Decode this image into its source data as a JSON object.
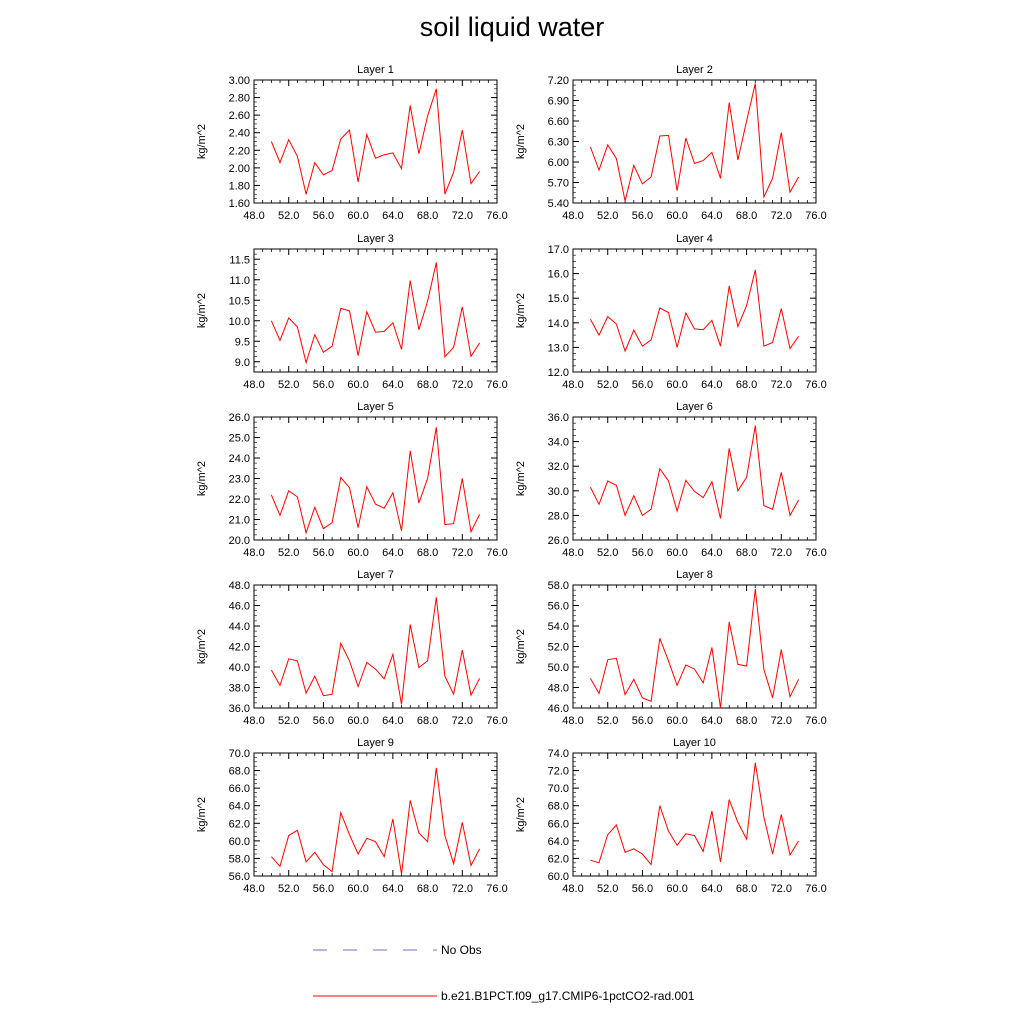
{
  "figure": {
    "title": "soil liquid water",
    "legend": [
      {
        "label": "No Obs",
        "color": "#6c6cd8",
        "style": "dashed"
      },
      {
        "label": "b.e21.B1PCT.f09_g17.CMIP6-1pctCO2-rad.001",
        "color": "#ff0000",
        "style": "solid"
      }
    ]
  },
  "chart_data": [
    {
      "type": "line",
      "title": "Layer 1",
      "ylabel": "kg/m^2",
      "xlim": [
        48,
        76
      ],
      "ylim": [
        1.6,
        3.0
      ],
      "xticks": [
        "48.0",
        "52.0",
        "56.0",
        "60.0",
        "64.0",
        "68.0",
        "72.0",
        "76.0"
      ],
      "yticks": [
        "1.60",
        "1.80",
        "2.00",
        "2.20",
        "2.40",
        "2.60",
        "2.80",
        "3.00"
      ],
      "x": [
        50,
        51,
        52,
        53,
        54,
        55,
        56,
        57,
        58,
        59,
        60,
        61,
        62,
        63,
        64,
        65,
        66,
        67,
        68,
        69,
        70,
        71,
        72,
        73,
        74
      ],
      "series": [
        {
          "name": "b.e21.B1PCT.f09_g17.CMIP6-1pctCO2-rad.001",
          "color": "#ff0000",
          "values": [
            2.3,
            2.06,
            2.32,
            2.13,
            1.7,
            2.06,
            1.92,
            1.97,
            2.33,
            2.43,
            1.84,
            2.38,
            2.11,
            2.15,
            2.17,
            1.99,
            2.71,
            2.16,
            2.59,
            2.9,
            1.7,
            1.95,
            2.43,
            1.82,
            1.96
          ]
        }
      ]
    },
    {
      "type": "line",
      "title": "Layer 2",
      "ylabel": "kg/m^2",
      "xlim": [
        48,
        76
      ],
      "ylim": [
        5.4,
        7.2
      ],
      "xticks": [
        "48.0",
        "52.0",
        "56.0",
        "60.0",
        "64.0",
        "68.0",
        "72.0",
        "76.0"
      ],
      "yticks": [
        "5.40",
        "5.70",
        "6.00",
        "6.30",
        "6.60",
        "6.90",
        "7.20"
      ],
      "x": [
        50,
        51,
        52,
        53,
        54,
        55,
        56,
        57,
        58,
        59,
        60,
        61,
        62,
        63,
        64,
        65,
        66,
        67,
        68,
        69,
        70,
        71,
        72,
        73,
        74
      ],
      "series": [
        {
          "name": "b.e21.B1PCT.f09_g17.CMIP6-1pctCO2-rad.001",
          "color": "#ff0000",
          "values": [
            6.22,
            5.88,
            6.25,
            6.05,
            5.43,
            5.95,
            5.68,
            5.78,
            6.38,
            6.39,
            5.58,
            6.35,
            5.98,
            6.02,
            6.14,
            5.76,
            6.87,
            6.03,
            6.6,
            7.15,
            5.49,
            5.76,
            6.43,
            5.56,
            5.78
          ]
        }
      ]
    },
    {
      "type": "line",
      "title": "Layer 3",
      "ylabel": "kg/m^2",
      "xlim": [
        48,
        76
      ],
      "ylim": [
        8.75,
        11.75
      ],
      "xticks": [
        "48.0",
        "52.0",
        "56.0",
        "60.0",
        "64.0",
        "68.0",
        "72.0",
        "76.0"
      ],
      "yticks": [
        "9.0",
        "9.5",
        "10.0",
        "10.5",
        "11.0",
        "11.5"
      ],
      "x": [
        50,
        51,
        52,
        53,
        54,
        55,
        56,
        57,
        58,
        59,
        60,
        61,
        62,
        63,
        64,
        65,
        66,
        67,
        68,
        69,
        70,
        71,
        72,
        73,
        74
      ],
      "series": [
        {
          "name": "b.e21.B1PCT.f09_g17.CMIP6-1pctCO2-rad.001",
          "color": "#ff0000",
          "values": [
            10.0,
            9.52,
            10.07,
            9.85,
            8.98,
            9.66,
            9.23,
            9.38,
            10.3,
            10.24,
            9.15,
            10.22,
            9.72,
            9.74,
            9.95,
            9.3,
            10.98,
            9.78,
            10.48,
            11.42,
            9.12,
            9.35,
            10.34,
            9.13,
            9.46
          ]
        }
      ]
    },
    {
      "type": "line",
      "title": "Layer 4",
      "ylabel": "kg/m^2",
      "xlim": [
        48,
        76
      ],
      "ylim": [
        12.0,
        17.0
      ],
      "xticks": [
        "48.0",
        "52.0",
        "56.0",
        "60.0",
        "64.0",
        "68.0",
        "72.0",
        "76.0"
      ],
      "yticks": [
        "12.0",
        "13.0",
        "14.0",
        "15.0",
        "16.0",
        "17.0"
      ],
      "x": [
        50,
        51,
        52,
        53,
        54,
        55,
        56,
        57,
        58,
        59,
        60,
        61,
        62,
        63,
        64,
        65,
        66,
        67,
        68,
        69,
        70,
        71,
        72,
        73,
        74
      ],
      "series": [
        {
          "name": "b.e21.B1PCT.f09_g17.CMIP6-1pctCO2-rad.001",
          "color": "#ff0000",
          "values": [
            14.15,
            13.5,
            14.25,
            13.95,
            12.85,
            13.7,
            13.05,
            13.3,
            14.6,
            14.42,
            13.0,
            14.4,
            13.75,
            13.72,
            14.1,
            13.05,
            15.5,
            13.85,
            14.7,
            16.15,
            13.05,
            13.2,
            14.58,
            12.95,
            13.45
          ]
        }
      ]
    },
    {
      "type": "line",
      "title": "Layer 5",
      "ylabel": "kg/m^2",
      "xlim": [
        48,
        76
      ],
      "ylim": [
        20.0,
        26.0
      ],
      "xticks": [
        "48.0",
        "52.0",
        "56.0",
        "60.0",
        "64.0",
        "68.0",
        "72.0",
        "76.0"
      ],
      "yticks": [
        "20.0",
        "21.0",
        "22.0",
        "23.0",
        "24.0",
        "25.0",
        "26.0"
      ],
      "x": [
        50,
        51,
        52,
        53,
        54,
        55,
        56,
        57,
        58,
        59,
        60,
        61,
        62,
        63,
        64,
        65,
        66,
        67,
        68,
        69,
        70,
        71,
        72,
        73,
        74
      ],
      "series": [
        {
          "name": "b.e21.B1PCT.f09_g17.CMIP6-1pctCO2-rad.001",
          "color": "#ff0000",
          "values": [
            22.2,
            21.2,
            22.4,
            22.1,
            20.35,
            21.6,
            20.55,
            20.85,
            23.05,
            22.55,
            20.6,
            22.6,
            21.75,
            21.55,
            22.3,
            20.45,
            24.35,
            21.8,
            23.0,
            25.5,
            20.75,
            20.8,
            23.0,
            20.4,
            21.25
          ]
        }
      ]
    },
    {
      "type": "line",
      "title": "Layer 6",
      "ylabel": "kg/m^2",
      "xlim": [
        48,
        76
      ],
      "ylim": [
        26.0,
        36.0
      ],
      "xticks": [
        "48.0",
        "52.0",
        "56.0",
        "60.0",
        "64.0",
        "68.0",
        "72.0",
        "76.0"
      ],
      "yticks": [
        "26.0",
        "28.0",
        "30.0",
        "32.0",
        "34.0",
        "36.0"
      ],
      "x": [
        50,
        51,
        52,
        53,
        54,
        55,
        56,
        57,
        58,
        59,
        60,
        61,
        62,
        63,
        64,
        65,
        66,
        67,
        68,
        69,
        70,
        71,
        72,
        73,
        74
      ],
      "series": [
        {
          "name": "b.e21.B1PCT.f09_g17.CMIP6-1pctCO2-rad.001",
          "color": "#ff0000",
          "values": [
            30.3,
            28.9,
            30.8,
            30.45,
            28.0,
            29.6,
            28.0,
            28.5,
            31.8,
            30.8,
            28.35,
            30.85,
            29.95,
            29.45,
            30.75,
            27.75,
            33.45,
            30.0,
            31.1,
            35.3,
            28.8,
            28.5,
            31.5,
            28.0,
            29.25
          ]
        }
      ]
    },
    {
      "type": "line",
      "title": "Layer 7",
      "ylabel": "kg/m^2",
      "xlim": [
        48,
        76
      ],
      "ylim": [
        36.0,
        48.0
      ],
      "xticks": [
        "48.0",
        "52.0",
        "56.0",
        "60.0",
        "64.0",
        "68.0",
        "72.0",
        "76.0"
      ],
      "yticks": [
        "36.0",
        "38.0",
        "40.0",
        "42.0",
        "44.0",
        "46.0",
        "48.0"
      ],
      "x": [
        50,
        51,
        52,
        53,
        54,
        55,
        56,
        57,
        58,
        59,
        60,
        61,
        62,
        63,
        64,
        65,
        66,
        67,
        68,
        69,
        70,
        71,
        72,
        73,
        74
      ],
      "series": [
        {
          "name": "b.e21.B1PCT.f09_g17.CMIP6-1pctCO2-rad.001",
          "color": "#ff0000",
          "values": [
            39.7,
            38.2,
            40.8,
            40.6,
            37.45,
            39.1,
            37.2,
            37.35,
            42.3,
            40.6,
            38.1,
            40.45,
            39.8,
            38.85,
            41.25,
            36.35,
            44.15,
            39.95,
            40.6,
            46.8,
            39.1,
            37.35,
            41.65,
            37.25,
            38.9
          ]
        }
      ]
    },
    {
      "type": "line",
      "title": "Layer 8",
      "ylabel": "kg/m^2",
      "xlim": [
        48,
        76
      ],
      "ylim": [
        46.0,
        58.0
      ],
      "xticks": [
        "48.0",
        "52.0",
        "56.0",
        "60.0",
        "64.0",
        "68.0",
        "72.0",
        "76.0"
      ],
      "yticks": [
        "46.0",
        "48.0",
        "50.0",
        "52.0",
        "54.0",
        "56.0",
        "58.0"
      ],
      "x": [
        50,
        51,
        52,
        53,
        54,
        55,
        56,
        57,
        58,
        59,
        60,
        61,
        62,
        63,
        64,
        65,
        66,
        67,
        68,
        69,
        70,
        71,
        72,
        73,
        74
      ],
      "series": [
        {
          "name": "b.e21.B1PCT.f09_g17.CMIP6-1pctCO2-rad.001",
          "color": "#ff0000",
          "values": [
            48.9,
            47.4,
            50.7,
            50.85,
            47.3,
            48.8,
            47.0,
            46.65,
            52.8,
            50.6,
            48.2,
            50.2,
            49.8,
            48.45,
            51.9,
            46.0,
            54.4,
            50.25,
            50.1,
            57.6,
            49.75,
            47.0,
            51.7,
            47.1,
            48.8
          ]
        }
      ]
    },
    {
      "type": "line",
      "title": "Layer 9",
      "ylabel": "kg/m^2",
      "xlim": [
        48,
        76
      ],
      "ylim": [
        56.0,
        70.0
      ],
      "xticks": [
        "48.0",
        "52.0",
        "56.0",
        "60.0",
        "64.0",
        "68.0",
        "72.0",
        "76.0"
      ],
      "yticks": [
        "56.0",
        "58.0",
        "60.0",
        "62.0",
        "64.0",
        "66.0",
        "68.0",
        "70.0"
      ],
      "x": [
        50,
        51,
        52,
        53,
        54,
        55,
        56,
        57,
        58,
        59,
        60,
        61,
        62,
        63,
        64,
        65,
        66,
        67,
        68,
        69,
        70,
        71,
        72,
        73,
        74
      ],
      "series": [
        {
          "name": "b.e21.B1PCT.f09_g17.CMIP6-1pctCO2-rad.001",
          "color": "#ff0000",
          "values": [
            58.2,
            57.1,
            60.6,
            61.2,
            57.6,
            58.7,
            57.3,
            56.5,
            63.2,
            60.7,
            58.5,
            60.3,
            59.9,
            58.2,
            62.5,
            56.2,
            64.6,
            60.9,
            59.9,
            68.3,
            60.6,
            57.4,
            62.1,
            57.2,
            59.1
          ]
        }
      ]
    },
    {
      "type": "line",
      "title": "Layer 10",
      "ylabel": "kg/m^2",
      "xlim": [
        48,
        76
      ],
      "ylim": [
        60.0,
        74.0
      ],
      "xticks": [
        "48.0",
        "52.0",
        "56.0",
        "60.0",
        "64.0",
        "68.0",
        "72.0",
        "76.0"
      ],
      "yticks": [
        "60.0",
        "62.0",
        "64.0",
        "66.0",
        "68.0",
        "70.0",
        "72.0",
        "74.0"
      ],
      "x": [
        50,
        51,
        52,
        53,
        54,
        55,
        56,
        57,
        58,
        59,
        60,
        61,
        62,
        63,
        64,
        65,
        66,
        67,
        68,
        69,
        70,
        71,
        72,
        73,
        74
      ],
      "series": [
        {
          "name": "b.e21.B1PCT.f09_g17.CMIP6-1pctCO2-rad.001",
          "color": "#ff0000",
          "values": [
            61.8,
            61.5,
            64.7,
            65.8,
            62.7,
            63.1,
            62.5,
            61.3,
            68.0,
            65.1,
            63.5,
            64.8,
            64.6,
            62.8,
            67.4,
            61.6,
            68.7,
            66.1,
            64.2,
            72.9,
            66.7,
            62.5,
            67.0,
            62.4,
            64.0
          ]
        }
      ]
    }
  ]
}
